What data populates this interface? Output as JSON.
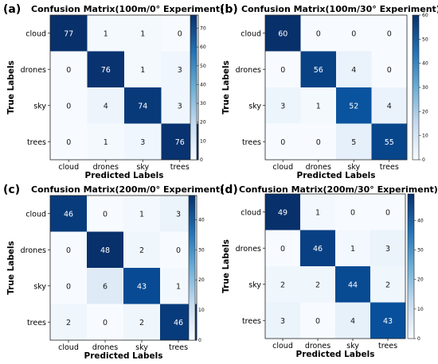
{
  "chart_data": [
    {
      "type": "heatmap",
      "panel_label": "(a)",
      "title": "Confusion Matrix(100m/0° Experiment)",
      "xlabel": "Predicted Labels",
      "ylabel": "True Labels",
      "categories": [
        "cloud",
        "drones",
        "sky",
        "trees"
      ],
      "matrix": [
        [
          77,
          1,
          1,
          0
        ],
        [
          0,
          76,
          1,
          3
        ],
        [
          0,
          4,
          74,
          3
        ],
        [
          0,
          1,
          3,
          76
        ]
      ],
      "colorbar_max": 77,
      "colorbar_ticks": [
        0,
        10,
        20,
        30,
        40,
        50,
        60,
        70
      ],
      "colormap": "Blues"
    },
    {
      "type": "heatmap",
      "panel_label": "(b)",
      "title": "Confusion Matrix(100m/30° Experiment)",
      "xlabel": "Predicted Labels",
      "ylabel": "True Labels",
      "categories": [
        "cloud",
        "drones",
        "sky",
        "trees"
      ],
      "matrix": [
        [
          60,
          0,
          0,
          0
        ],
        [
          0,
          56,
          4,
          0
        ],
        [
          3,
          1,
          52,
          4
        ],
        [
          0,
          0,
          5,
          55
        ]
      ],
      "colorbar_max": 60,
      "colorbar_ticks": [
        0,
        10,
        20,
        30,
        40,
        50,
        60
      ],
      "colormap": "Blues"
    },
    {
      "type": "heatmap",
      "panel_label": "(c)",
      "title": "Confusion Matrix(200m/0° Experiment)",
      "xlabel": "Predicted Labels",
      "ylabel": "True Labels",
      "categories": [
        "cloud",
        "drones",
        "sky",
        "trees"
      ],
      "matrix": [
        [
          46,
          0,
          1,
          3
        ],
        [
          0,
          48,
          2,
          0
        ],
        [
          0,
          6,
          43,
          1
        ],
        [
          2,
          0,
          2,
          46
        ]
      ],
      "colorbar_max": 48,
      "colorbar_ticks": [
        0,
        10,
        20,
        30,
        40
      ],
      "colormap": "Blues"
    },
    {
      "type": "heatmap",
      "panel_label": "(d)",
      "title": "Confusion Matrix(200m/30° Experiment)",
      "xlabel": "Predicted Labels",
      "ylabel": "True Labels",
      "categories": [
        "cloud",
        "drones",
        "sky",
        "trees"
      ],
      "matrix": [
        [
          49,
          1,
          0,
          0
        ],
        [
          0,
          46,
          1,
          3
        ],
        [
          2,
          2,
          44,
          2
        ],
        [
          3,
          0,
          4,
          43
        ]
      ],
      "colorbar_max": 49,
      "colorbar_ticks": [
        0,
        10,
        20,
        30,
        40
      ],
      "colormap": "Blues"
    }
  ]
}
